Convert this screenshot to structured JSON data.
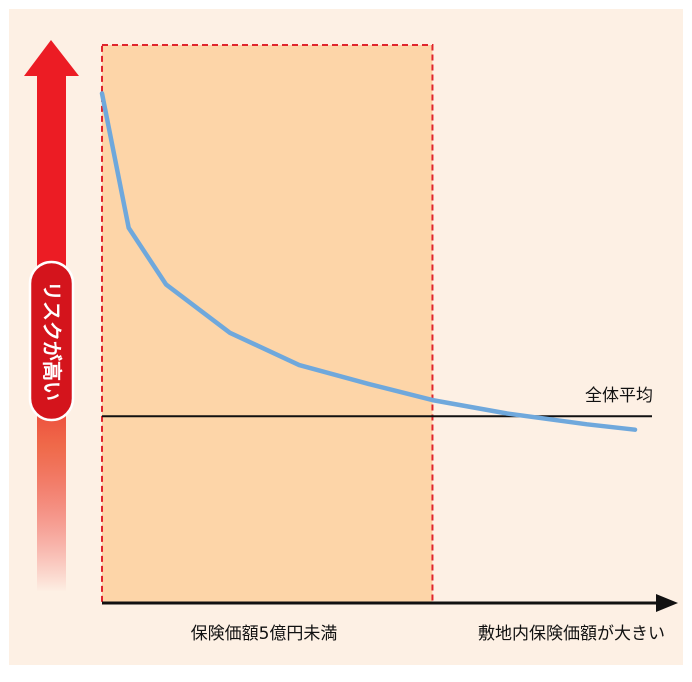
{
  "chart_data": {
    "type": "line",
    "title": "",
    "xlabel": "敷地内保険価額が大きい",
    "ylabel": "リスクが高い",
    "xlim": [
      0,
      10
    ],
    "ylim": [
      0,
      10
    ],
    "series": [
      {
        "color": "#6fa8dc",
        "x": [
          0,
          0.5,
          1.2,
          2.4,
          3.7,
          5,
          6.2,
          7.6,
          9.1,
          10
        ],
        "y": [
          9.1,
          6.6,
          5.55,
          4.65,
          4.05,
          3.7,
          3.4,
          3.15,
          2.95,
          2.85
        ]
      }
    ],
    "reference_line": {
      "label": "全体平均",
      "y": 3.1
    },
    "highlight_region": {
      "label": "保険価額5億円未満",
      "x": [
        0,
        6.2
      ]
    },
    "colors": {
      "background": "#fdf0e4",
      "highlight_fill": "#fdd5a8",
      "highlight_border": "#e0242c",
      "risk_arrow": "#ec1c24",
      "axis": "#111111"
    }
  }
}
